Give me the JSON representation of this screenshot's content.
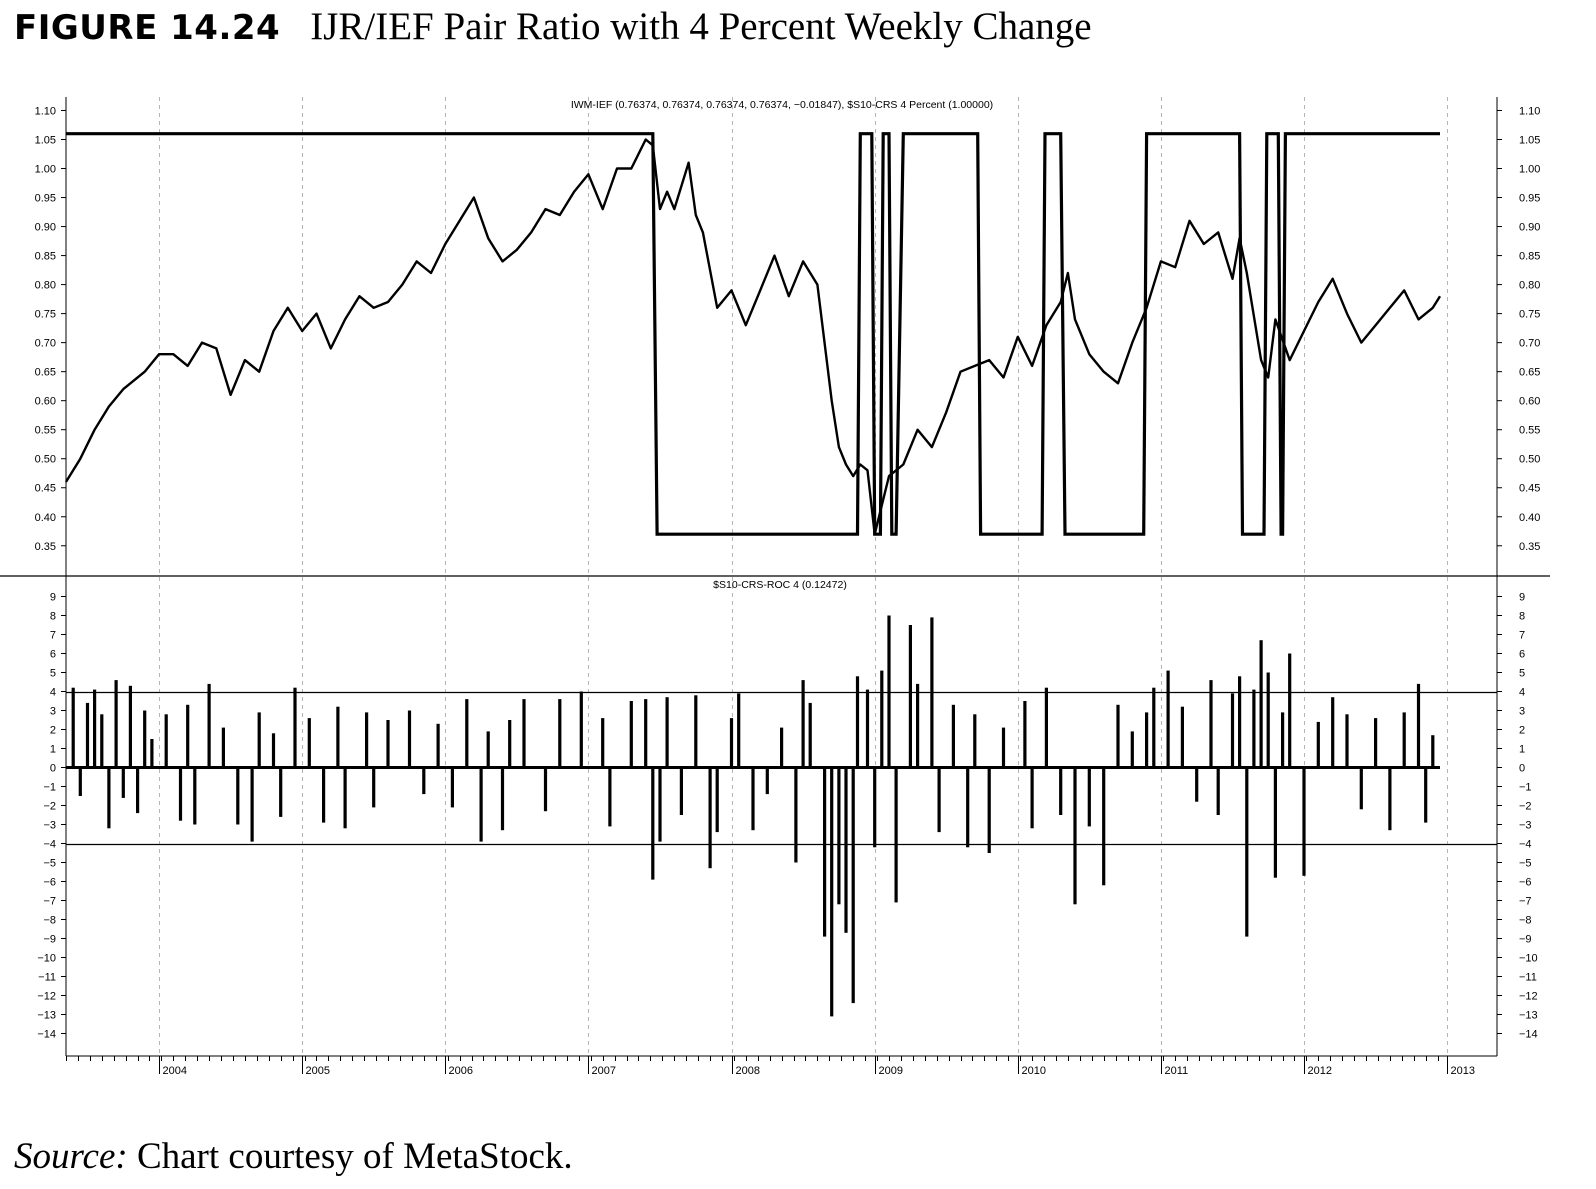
{
  "figure": {
    "label": "FIGURE 14.24",
    "title": "IJR/IEF Pair Ratio with 4 Percent Weekly Change",
    "source_label": "Source:",
    "source_text": " Chart courtesy of MetaStock."
  },
  "chart_data": [
    {
      "type": "line",
      "title": "IWM-IEF (0.76374, 0.76374, 0.76374, 0.76374, −0.01847), $S10-CRS 4 Percent (1.00000)",
      "x_tick_labels": [
        "2004",
        "2005",
        "2006",
        "2007",
        "2008",
        "2009",
        "2010",
        "2011",
        "2012",
        "2013"
      ],
      "xlim": [
        2003.35,
        2012.95
      ],
      "ylim": [
        0.3,
        1.12
      ],
      "y_ticks": [
        1.1,
        1.05,
        1.0,
        0.95,
        0.9,
        0.85,
        0.8,
        0.75,
        0.7,
        0.65,
        0.6,
        0.55,
        0.5,
        0.45,
        0.4,
        0.35
      ],
      "y_tick_labels": [
        "1.10",
        "1.05",
        "1.00",
        "0.95",
        "0.90",
        "0.85",
        "0.80",
        "0.75",
        "0.70",
        "0.65",
        "0.60",
        "0.55",
        "0.50",
        "0.45",
        "0.40",
        "0.35"
      ],
      "grid": "vertical dashed at year boundaries",
      "series": [
        {
          "name": "IWM-IEF",
          "x": [
            2003.35,
            2003.45,
            2003.55,
            2003.65,
            2003.75,
            2003.9,
            2004.0,
            2004.1,
            2004.2,
            2004.3,
            2004.4,
            2004.5,
            2004.6,
            2004.7,
            2004.8,
            2004.9,
            2005.0,
            2005.1,
            2005.2,
            2005.3,
            2005.4,
            2005.5,
            2005.6,
            2005.7,
            2005.8,
            2005.9,
            2006.0,
            2006.1,
            2006.2,
            2006.3,
            2006.4,
            2006.5,
            2006.6,
            2006.7,
            2006.8,
            2006.9,
            2007.0,
            2007.1,
            2007.2,
            2007.3,
            2007.4,
            2007.45,
            2007.5,
            2007.55,
            2007.6,
            2007.7,
            2007.75,
            2007.8,
            2007.9,
            2008.0,
            2008.1,
            2008.2,
            2008.3,
            2008.4,
            2008.5,
            2008.6,
            2008.7,
            2008.75,
            2008.8,
            2008.85,
            2008.9,
            2008.95,
            2009.0,
            2009.1,
            2009.2,
            2009.3,
            2009.4,
            2009.5,
            2009.6,
            2009.7,
            2009.8,
            2009.9,
            2010.0,
            2010.1,
            2010.2,
            2010.3,
            2010.35,
            2010.4,
            2010.5,
            2010.6,
            2010.7,
            2010.8,
            2010.9,
            2011.0,
            2011.1,
            2011.2,
            2011.3,
            2011.4,
            2011.5,
            2011.55,
            2011.6,
            2011.7,
            2011.75,
            2011.8,
            2011.9,
            2012.0,
            2012.1,
            2012.2,
            2012.3,
            2012.4,
            2012.5,
            2012.6,
            2012.7,
            2012.8,
            2012.9,
            2012.95
          ],
          "y": [
            0.46,
            0.5,
            0.55,
            0.59,
            0.62,
            0.65,
            0.68,
            0.68,
            0.66,
            0.7,
            0.69,
            0.61,
            0.67,
            0.65,
            0.72,
            0.76,
            0.72,
            0.75,
            0.69,
            0.74,
            0.78,
            0.76,
            0.77,
            0.8,
            0.84,
            0.82,
            0.87,
            0.91,
            0.95,
            0.88,
            0.84,
            0.86,
            0.89,
            0.93,
            0.92,
            0.96,
            0.99,
            0.93,
            1.0,
            1.0,
            1.05,
            1.04,
            0.93,
            0.96,
            0.93,
            1.01,
            0.92,
            0.89,
            0.76,
            0.79,
            0.73,
            0.79,
            0.85,
            0.78,
            0.84,
            0.8,
            0.6,
            0.52,
            0.49,
            0.47,
            0.49,
            0.48,
            0.37,
            0.47,
            0.49,
            0.55,
            0.52,
            0.58,
            0.65,
            0.66,
            0.67,
            0.64,
            0.71,
            0.66,
            0.73,
            0.77,
            0.82,
            0.74,
            0.68,
            0.65,
            0.63,
            0.7,
            0.76,
            0.84,
            0.83,
            0.91,
            0.87,
            0.89,
            0.81,
            0.88,
            0.82,
            0.67,
            0.64,
            0.74,
            0.67,
            0.72,
            0.77,
            0.81,
            0.75,
            0.7,
            0.73,
            0.76,
            0.79,
            0.74,
            0.76,
            0.78
          ]
        },
        {
          "name": "$S10-CRS 4 Percent",
          "x": [
            2003.35,
            2007.45,
            2007.48,
            2008.88,
            2008.9,
            2008.98,
            2009.0,
            2009.04,
            2009.06,
            2009.1,
            2009.12,
            2009.15,
            2009.2,
            2009.3,
            2009.72,
            2009.74,
            2010.17,
            2010.19,
            2010.3,
            2010.33,
            2010.88,
            2010.9,
            2011.55,
            2011.57,
            2011.72,
            2011.74,
            2011.82,
            2011.84,
            2011.85,
            2011.87,
            2011.88,
            2012.95
          ],
          "y": [
            1.06,
            1.06,
            0.37,
            0.37,
            1.06,
            1.06,
            0.37,
            0.37,
            1.06,
            1.06,
            0.37,
            0.37,
            1.06,
            1.06,
            1.06,
            0.37,
            0.37,
            1.06,
            1.06,
            0.37,
            0.37,
            1.06,
            1.06,
            0.37,
            0.37,
            1.06,
            1.06,
            0.37,
            0.37,
            1.06,
            1.06,
            1.06
          ]
        }
      ]
    },
    {
      "type": "bar",
      "title": "$S10-CRS-ROC 4 (0.12472)",
      "x_tick_labels": [
        "2004",
        "2005",
        "2006",
        "2007",
        "2008",
        "2009",
        "2010",
        "2011",
        "2012",
        "2013"
      ],
      "xlim": [
        2003.35,
        2012.95
      ],
      "ylim": [
        -15,
        10
      ],
      "y_ticks": [
        9,
        8,
        7,
        6,
        5,
        4,
        3,
        2,
        1,
        0,
        -1,
        -2,
        -3,
        -4,
        -5,
        -6,
        -7,
        -8,
        -9,
        -10,
        -11,
        -12,
        -13,
        -14
      ],
      "y_tick_labels": [
        "9",
        "8",
        "7",
        "6",
        "5",
        "4",
        "3",
        "2",
        "1",
        "0",
        "−1",
        "−2",
        "−3",
        "−4",
        "−5",
        "−6",
        "−7",
        "−8",
        "−9",
        "−10",
        "−11",
        "−12",
        "−13",
        "−14"
      ],
      "reference_lines": [
        4,
        -4
      ],
      "grid": "vertical dashed at year boundaries",
      "series": [
        {
          "name": "$S10-CRS-ROC 4",
          "x": [
            2003.4,
            2003.45,
            2003.5,
            2003.55,
            2003.6,
            2003.65,
            2003.7,
            2003.75,
            2003.8,
            2003.85,
            2003.9,
            2003.95,
            2004.05,
            2004.15,
            2004.2,
            2004.25,
            2004.35,
            2004.45,
            2004.55,
            2004.65,
            2004.7,
            2004.8,
            2004.85,
            2004.95,
            2005.05,
            2005.15,
            2005.25,
            2005.3,
            2005.45,
            2005.5,
            2005.6,
            2005.75,
            2005.85,
            2005.95,
            2006.05,
            2006.15,
            2006.25,
            2006.3,
            2006.4,
            2006.45,
            2006.55,
            2006.7,
            2006.8,
            2006.95,
            2007.1,
            2007.15,
            2007.3,
            2007.4,
            2007.45,
            2007.5,
            2007.55,
            2007.65,
            2007.75,
            2007.85,
            2007.9,
            2008.0,
            2008.05,
            2008.15,
            2008.25,
            2008.35,
            2008.45,
            2008.5,
            2008.55,
            2008.65,
            2008.7,
            2008.75,
            2008.8,
            2008.85,
            2008.88,
            2008.95,
            2009.0,
            2009.05,
            2009.1,
            2009.15,
            2009.25,
            2009.3,
            2009.4,
            2009.45,
            2009.55,
            2009.65,
            2009.7,
            2009.8,
            2009.9,
            2010.05,
            2010.1,
            2010.2,
            2010.3,
            2010.4,
            2010.5,
            2010.6,
            2010.7,
            2010.8,
            2010.9,
            2010.95,
            2011.05,
            2011.15,
            2011.25,
            2011.35,
            2011.4,
            2011.5,
            2011.55,
            2011.6,
            2011.65,
            2011.7,
            2011.75,
            2011.8,
            2011.85,
            2011.9,
            2012.0,
            2012.1,
            2012.2,
            2012.3,
            2012.4,
            2012.5,
            2012.6,
            2012.7,
            2012.8,
            2012.85,
            2012.9
          ],
          "values": [
            4.2,
            -1.5,
            3.4,
            4.1,
            2.8,
            -3.2,
            4.6,
            -1.6,
            4.3,
            -2.4,
            3.0,
            1.5,
            2.8,
            -2.8,
            3.3,
            -3.0,
            4.4,
            2.1,
            -3.0,
            -3.9,
            2.9,
            1.8,
            -2.6,
            4.2,
            2.6,
            -2.9,
            3.2,
            -3.2,
            2.9,
            -2.1,
            2.5,
            3.0,
            -1.4,
            2.3,
            -2.1,
            3.6,
            -3.9,
            1.9,
            -3.3,
            2.5,
            3.6,
            -2.3,
            3.6,
            4.0,
            2.6,
            -3.1,
            3.5,
            3.6,
            -5.9,
            -3.9,
            3.7,
            -2.5,
            3.8,
            -5.3,
            -3.4,
            2.6,
            3.9,
            -3.3,
            -1.4,
            2.1,
            -5.0,
            4.6,
            3.4,
            -8.9,
            -13.1,
            -7.2,
            -8.7,
            -12.4,
            4.8,
            4.1,
            -4.2,
            5.1,
            8.0,
            -7.1,
            7.5,
            4.4,
            7.9,
            -3.4,
            3.3,
            -4.2,
            2.8,
            -4.5,
            2.1,
            3.5,
            -3.2,
            4.2,
            -2.5,
            -7.2,
            -3.1,
            -6.2,
            3.3,
            1.9,
            2.9,
            4.2,
            5.1,
            3.2,
            -1.8,
            4.6,
            -2.5,
            3.9,
            4.8,
            -8.9,
            4.1,
            6.7,
            5.0,
            -5.8,
            2.9,
            6.0,
            -5.7,
            2.4,
            3.7,
            2.8,
            -2.2,
            2.6,
            -3.3,
            2.9,
            4.4,
            -2.9,
            1.7
          ]
        }
      ]
    }
  ]
}
